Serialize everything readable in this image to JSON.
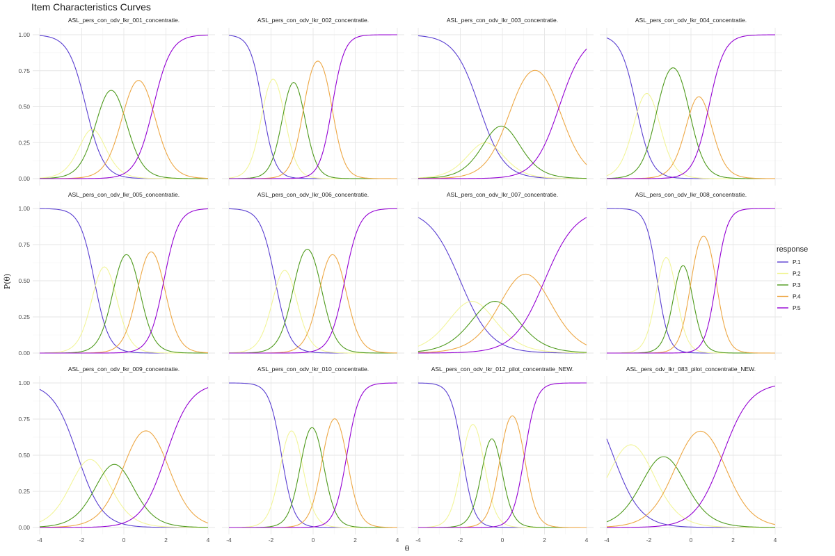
{
  "chart_data": {
    "type": "line",
    "title": "Item Characteristics Curves",
    "xlabel": "θ",
    "ylabel": "P(θ)",
    "xlim": [
      -4,
      4
    ],
    "ylim": [
      0,
      1
    ],
    "x_ticks": [
      -4,
      -2,
      0,
      2,
      4
    ],
    "y_ticks": [
      0,
      0.25,
      0.5,
      0.75,
      1
    ],
    "x_tick_labels": [
      "-4",
      "-2",
      "0",
      "2",
      "4"
    ],
    "y_tick_labels": [
      "0.00",
      "0.25",
      "0.50",
      "0.75",
      "1.00"
    ],
    "grid": true,
    "legend": {
      "title": "response",
      "position": "right",
      "entries": [
        {
          "name": "P.1",
          "color": "#5a3fd1"
        },
        {
          "name": "P.2",
          "color": "#f2f59a"
        },
        {
          "name": "P.3",
          "color": "#4e9a1c"
        },
        {
          "name": "P.4",
          "color": "#eda744"
        },
        {
          "name": "P.5",
          "color": "#9400d3"
        }
      ]
    },
    "facet_layout": {
      "rows": 3,
      "cols": 4
    },
    "panels": [
      {
        "item": "ASL_pers_con_odv_lkr_001_concentratie.",
        "a": 1.4,
        "b": [
          -1.8,
          -1.2,
          0.0,
          1.4
        ]
      },
      {
        "item": "ASL_pers_con_odv_lkr_002_concentratie.",
        "a": 2.0,
        "b": [
          -2.4,
          -1.4,
          -0.45,
          0.9
        ]
      },
      {
        "item": "ASL_pers_con_odv_lkr_003_concentratie.",
        "a": 1.0,
        "b": [
          -1.1,
          -0.5,
          0.4,
          2.7
        ]
      },
      {
        "item": "ASL_pers_con_odv_lkr_004_concentratie.",
        "a": 1.6,
        "b": [
          -2.6,
          -1.6,
          -0.1,
          0.85
        ]
      },
      {
        "item": "ASL_pers_con_odv_lkr_005_concentratie.",
        "a": 1.7,
        "b": [
          -1.4,
          -0.45,
          0.7,
          1.9
        ]
      },
      {
        "item": "ASL_pers_con_odv_lkr_006_concentratie.",
        "a": 1.7,
        "b": [
          -1.8,
          -0.9,
          0.35,
          1.5
        ]
      },
      {
        "item": "ASL_pers_con_odv_lkr_007_concentratie.",
        "a": 0.8,
        "b": [
          -2.0,
          -0.9,
          0.2,
          2.0
        ]
      },
      {
        "item": "ASL_pers_con_odv_lkr_008_concentratie.",
        "a": 2.2,
        "b": [
          -1.6,
          -0.75,
          0.0,
          1.2
        ]
      },
      {
        "item": "ASL_pers_con_odv_lkr_009_concentratie.",
        "a": 1.0,
        "b": [
          -2.2,
          -1.0,
          0.1,
          2.0
        ]
      },
      {
        "item": "ASL_pers_con_odv_lkr_010_concentratie.",
        "a": 2.0,
        "b": [
          -1.5,
          -0.55,
          0.45,
          1.6
        ]
      },
      {
        "item": "ASL_pers_con_odv_lkr_012_pilot_concentratie_NEW.",
        "a": 2.1,
        "b": [
          -1.9,
          -0.9,
          -0.1,
          1.05
        ]
      },
      {
        "item": "ASL_pers_odv_lkr_083_pilot_concentratie_NEW.",
        "a": 0.9,
        "b": [
          -3.7,
          -2.0,
          -0.6,
          1.5
        ]
      }
    ]
  }
}
